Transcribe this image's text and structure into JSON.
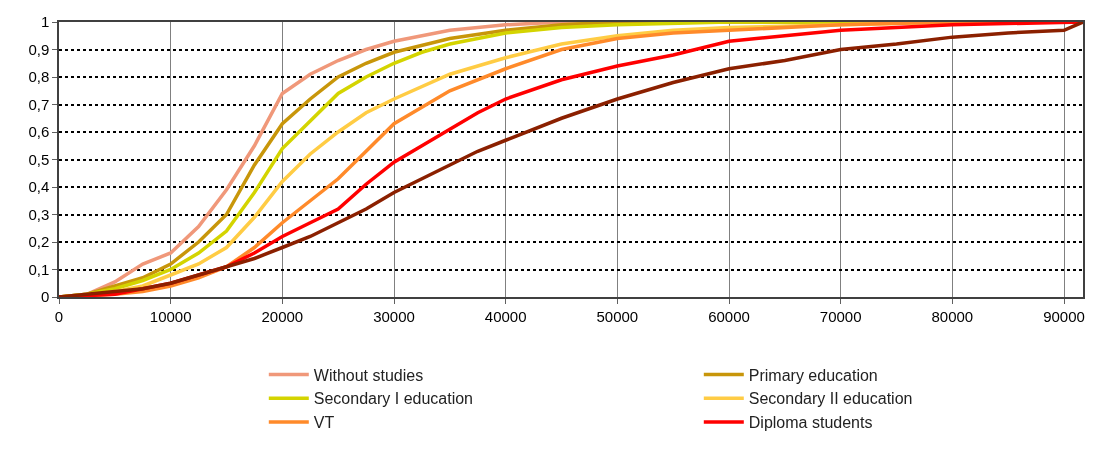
{
  "chart_data": {
    "type": "line",
    "xlim": [
      0,
      91700
    ],
    "xticks": [
      0,
      10000,
      20000,
      30000,
      40000,
      50000,
      60000,
      70000,
      80000,
      90000
    ],
    "ylim": [
      0,
      1
    ],
    "yticks": [
      {
        "value": 0,
        "label": "0"
      },
      {
        "value": 0.1,
        "label": "0,1"
      },
      {
        "value": 0.2,
        "label": "0,2"
      },
      {
        "value": 0.3,
        "label": "0,3"
      },
      {
        "value": 0.4,
        "label": "0,4"
      },
      {
        "value": 0.5,
        "label": "0,5"
      },
      {
        "value": 0.6,
        "label": "0,6"
      },
      {
        "value": 0.7,
        "label": "0,7"
      },
      {
        "value": 0.8,
        "label": "0,8"
      },
      {
        "value": 0.9,
        "label": "0,9"
      },
      {
        "value": 1,
        "label": "1"
      }
    ],
    "grid": true,
    "legend": "bottom",
    "marker": "none",
    "line_style": "solid",
    "series": [
      {
        "name": "Without studies",
        "color": "#f0987a",
        "x": [
          0,
          2500,
          5000,
          7500,
          10000,
          12500,
          15000,
          17500,
          20000,
          22500,
          25000,
          27500,
          30000,
          35000,
          40000,
          45000,
          91700
        ],
        "values": [
          0,
          0.01,
          0.055,
          0.12,
          0.16,
          0.256,
          0.39,
          0.55,
          0.74,
          0.81,
          0.86,
          0.9,
          0.93,
          0.97,
          0.99,
          1,
          1
        ]
      },
      {
        "name": "Primary education",
        "color": "#c8960a",
        "x": [
          0,
          2500,
          5000,
          7500,
          10000,
          12500,
          15000,
          17500,
          20000,
          22500,
          25000,
          27500,
          30000,
          35000,
          40000,
          45000,
          50000,
          91700
        ],
        "values": [
          0,
          0.01,
          0.04,
          0.07,
          0.12,
          0.2,
          0.3,
          0.48,
          0.63,
          0.72,
          0.8,
          0.85,
          0.89,
          0.94,
          0.97,
          0.99,
          1,
          1
        ]
      },
      {
        "name": "Secondary I education",
        "color": "#d4d400",
        "x": [
          0,
          2500,
          5000,
          7500,
          10000,
          12500,
          15000,
          17500,
          20000,
          22500,
          25000,
          27500,
          30000,
          32500,
          35000,
          40000,
          45000,
          50000,
          60000,
          91700
        ],
        "values": [
          0,
          0.01,
          0.03,
          0.06,
          0.1,
          0.16,
          0.24,
          0.38,
          0.54,
          0.64,
          0.74,
          0.8,
          0.85,
          0.89,
          0.92,
          0.96,
          0.98,
          0.99,
          1,
          1
        ]
      },
      {
        "name": "Secondary II education",
        "color": "#ffcc44",
        "x": [
          0,
          2500,
          5000,
          7500,
          10000,
          12500,
          15000,
          17500,
          20000,
          22500,
          25000,
          27500,
          30000,
          35000,
          40000,
          45000,
          50000,
          55000,
          60000,
          70000,
          80000,
          91700
        ],
        "values": [
          0,
          0.005,
          0.02,
          0.04,
          0.08,
          0.12,
          0.18,
          0.29,
          0.42,
          0.52,
          0.6,
          0.67,
          0.72,
          0.81,
          0.87,
          0.92,
          0.95,
          0.97,
          0.98,
          0.99,
          1,
          1
        ]
      },
      {
        "name": "VT",
        "color": "#ff8a2a",
        "x": [
          0,
          2500,
          5000,
          7500,
          10000,
          12500,
          15000,
          17500,
          20000,
          22500,
          25000,
          27500,
          30000,
          32500,
          35000,
          40000,
          45000,
          50000,
          55000,
          60000,
          70000,
          80000,
          91700
        ],
        "values": [
          0,
          0.005,
          0.01,
          0.02,
          0.04,
          0.07,
          0.11,
          0.18,
          0.27,
          0.35,
          0.43,
          0.53,
          0.63,
          0.69,
          0.75,
          0.83,
          0.9,
          0.94,
          0.96,
          0.97,
          0.99,
          1,
          1
        ]
      },
      {
        "name": "Diploma students",
        "color": "#ff0000",
        "x": [
          0,
          2500,
          5000,
          7500,
          10000,
          12500,
          15000,
          17500,
          20000,
          22500,
          25000,
          27500,
          30000,
          32500,
          35000,
          37500,
          40000,
          45000,
          50000,
          55000,
          60000,
          65000,
          70000,
          80000,
          91700
        ],
        "values": [
          0,
          0.005,
          0.01,
          0.03,
          0.05,
          0.08,
          0.11,
          0.16,
          0.22,
          0.27,
          0.32,
          0.41,
          0.49,
          0.55,
          0.61,
          0.67,
          0.72,
          0.79,
          0.84,
          0.88,
          0.93,
          0.95,
          0.97,
          0.99,
          1
        ]
      },
      {
        "color": "#8b2000",
        "x": [
          0,
          2500,
          5000,
          7500,
          10000,
          12500,
          15000,
          17500,
          20000,
          22500,
          25000,
          27500,
          30000,
          32500,
          35000,
          37500,
          40000,
          45000,
          50000,
          55000,
          60000,
          65000,
          70000,
          75000,
          80000,
          85000,
          90000,
          91700
        ],
        "values": [
          0,
          0.01,
          0.02,
          0.03,
          0.05,
          0.08,
          0.11,
          0.14,
          0.18,
          0.22,
          0.27,
          0.32,
          0.38,
          0.43,
          0.48,
          0.53,
          0.57,
          0.65,
          0.72,
          0.78,
          0.83,
          0.86,
          0.9,
          0.92,
          0.945,
          0.96,
          0.97,
          1
        ]
      }
    ]
  }
}
